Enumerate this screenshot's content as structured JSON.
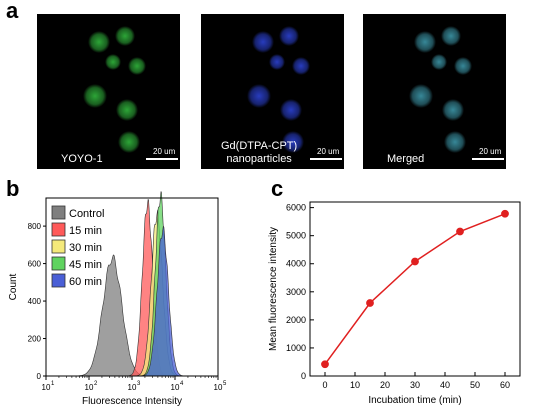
{
  "panel_a": {
    "letter": "a",
    "images": [
      {
        "label": "YOYO-1",
        "scale": "20 um",
        "channel": "green",
        "color": "#2fae3a"
      },
      {
        "label": "Gd(DTPA-CPT)\nnanoparticles",
        "scale": "20 um",
        "channel": "blue",
        "color": "#2a3fc8"
      },
      {
        "label": "Merged",
        "scale": "20 um",
        "channel": "merged",
        "color": "#3a8fa0"
      }
    ]
  },
  "panel_b": {
    "letter": "b",
    "legend": [
      {
        "label": "Control",
        "color": "#7f7f7f"
      },
      {
        "label": "15 min",
        "color": "#ff5a5a"
      },
      {
        "label": "30 min",
        "color": "#f4e97a"
      },
      {
        "label": "45 min",
        "color": "#5fd35f"
      },
      {
        "label": "60 min",
        "color": "#4a5fd6"
      }
    ]
  },
  "panel_c": {
    "letter": "c"
  },
  "chart_data": [
    {
      "type": "area",
      "xlabel": "Fluorescence Intensity",
      "ylabel": "Count",
      "x_scale": "log",
      "xlim": [
        10,
        100000
      ],
      "ylim": [
        0,
        950
      ],
      "x_ticks": [
        {
          "base": "10",
          "exp": "1"
        },
        {
          "base": "10",
          "exp": "2"
        },
        {
          "base": "10",
          "exp": "3"
        },
        {
          "base": "10",
          "exp": "4"
        },
        {
          "base": "10",
          "exp": "5"
        }
      ],
      "y_ticks": [
        0,
        200,
        400,
        600,
        800
      ],
      "series": [
        {
          "name": "Control",
          "color": "#7f7f7f",
          "peak_x": 350,
          "peak_y": 630,
          "width": 0.22
        },
        {
          "name": "15 min",
          "color": "#ff5a5a",
          "peak_x": 2300,
          "peak_y": 920,
          "width": 0.12
        },
        {
          "name": "30 min",
          "color": "#f4e97a",
          "peak_x": 3800,
          "peak_y": 860,
          "width": 0.13
        },
        {
          "name": "45 min",
          "color": "#5fd35f",
          "peak_x": 4600,
          "peak_y": 960,
          "width": 0.12
        },
        {
          "name": "60 min",
          "color": "#4a5fd6",
          "peak_x": 5200,
          "peak_y": 780,
          "width": 0.13
        }
      ]
    },
    {
      "type": "line",
      "xlabel": "Incubation time (min)",
      "ylabel": "Mean fluorescence intensity",
      "xlim": [
        -5,
        65
      ],
      "ylim": [
        0,
        6200
      ],
      "x_ticks": [
        0,
        10,
        20,
        30,
        40,
        50,
        60
      ],
      "y_ticks": [
        0,
        1000,
        2000,
        3000,
        4000,
        5000,
        6000
      ],
      "x": [
        0,
        15,
        30,
        45,
        60
      ],
      "y": [
        420,
        2600,
        4080,
        5150,
        5780
      ],
      "color": "#e02020"
    }
  ]
}
